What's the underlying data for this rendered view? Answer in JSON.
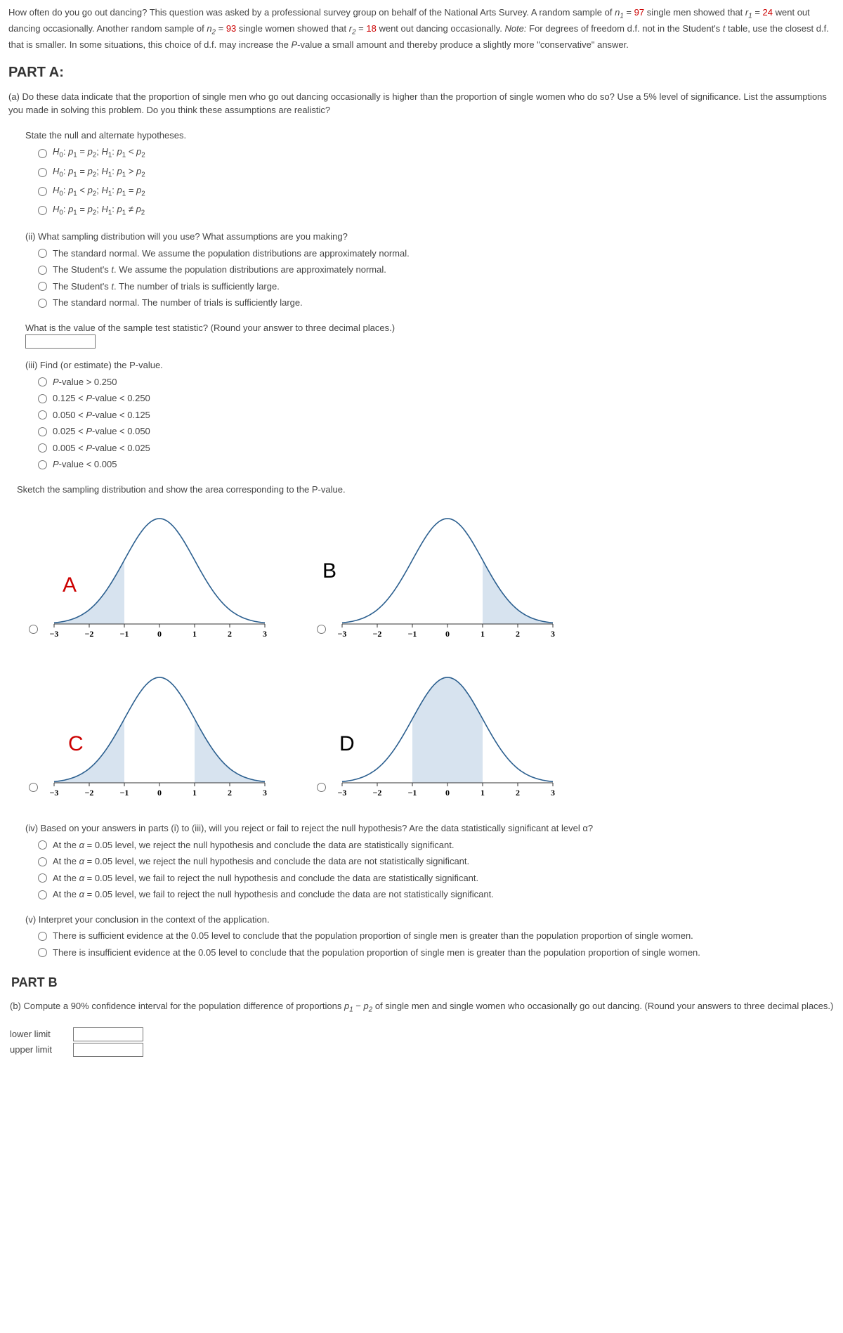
{
  "intro": {
    "pre": "How often do you go out dancing? This question was asked by a professional survey group on behalf of the National Arts Survey. A random sample of ",
    "n1_sym": "n",
    "n1_sub": "1",
    "eq": " = ",
    "n1_val": "97",
    "mid1": " single men showed that ",
    "r1_sym": "r",
    "r1_sub": "1",
    "r1_val": "24",
    "mid2": " went out dancing occasionally. Another random sample of ",
    "n2_sym": "n",
    "n2_sub": "2",
    "n2_val": "93",
    "mid3": " single women showed that ",
    "r2_sym": "r",
    "r2_sub": "2",
    "r2_val": "18",
    "mid4": " went out dancing occasionally. ",
    "note_label": "Note:",
    "note_text": " For degrees of freedom d.f. not in the Student's ",
    "note_t": "t",
    "note_text2": " table, use the closest d.f. that is smaller. In some situations, this choice of d.f. may increase the ",
    "note_P": "P",
    "note_text3": "-value a small amount and thereby produce a slightly more \"conservative\" answer."
  },
  "partA": {
    "title": "PART A:",
    "q": "(a) Do these data indicate that the proportion of single men who go out dancing occasionally is higher than the proportion of single women who do so? Use a 5% level of significance. List the assumptions you made in solving this problem. Do you think these assumptions are realistic?"
  },
  "hyp": {
    "title": "State the null and alternate hypotheses.",
    "opts": [
      {
        "h0": "H",
        "h0s": "0",
        "h1": "H",
        "h1s": "1",
        "rel0": "=",
        "rel1": "<"
      },
      {
        "h0": "H",
        "h0s": "0",
        "h1": "H",
        "h1s": "1",
        "rel0": "=",
        "rel1": ">"
      },
      {
        "h0": "H",
        "h0s": "0",
        "h1": "H",
        "h1s": "1",
        "rel0": "<",
        "rel1": "="
      },
      {
        "h0": "H",
        "h0s": "0",
        "h1": "H",
        "h1s": "1",
        "rel0": "=",
        "rel1": "≠"
      }
    ]
  },
  "dist": {
    "title": "(ii) What sampling distribution will you use? What assumptions are you making?",
    "opts": [
      "The standard normal. We assume the population distributions are approximately normal.",
      "The Student's t. We assume the population distributions are approximately normal.",
      "The Student's t. The number of trials is sufficiently large.",
      "The standard normal. The number of trials is sufficiently large."
    ]
  },
  "teststat": {
    "q": "What is the value of the sample test statistic? (Round your answer to three decimal places.)"
  },
  "pvalue": {
    "title": "(iii) Find (or estimate) the P-value.",
    "opts": [
      "P-value > 0.250",
      "0.125 < P-value < 0.250",
      "0.050 < P-value < 0.125",
      "0.025 < P-value < 0.050",
      "0.005 < P-value < 0.025",
      "P-value < 0.005"
    ]
  },
  "sketch": {
    "title": "Sketch the sampling distribution and show the area corresponding to the P-value.",
    "xmin": -3,
    "xmax": 3,
    "ticks": [
      -3,
      -2,
      -1,
      0,
      1,
      2,
      3
    ],
    "curve_color": "#2b5f8f",
    "fill_color": "#d7e3ef",
    "axis_color": "#333333",
    "tick_fontsize": 12,
    "panels": [
      {
        "id": "A",
        "label": "A",
        "label_color": "#c00",
        "shade": [
          [
            -3,
            -1
          ]
        ]
      },
      {
        "id": "B",
        "label": "B",
        "label_color": "#000",
        "shade": [
          [
            1,
            3
          ]
        ]
      },
      {
        "id": "C",
        "label": "C",
        "label_color": "#c00",
        "shade": [
          [
            -3,
            -1
          ],
          [
            1,
            3
          ]
        ]
      },
      {
        "id": "D",
        "label": "D",
        "label_color": "#000",
        "shade": [
          [
            -1,
            1
          ]
        ]
      }
    ]
  },
  "conclude": {
    "title": "(iv) Based on your answers in parts (i) to (iii), will you reject or fail to reject the null hypothesis? Are the data statistically significant at level α?",
    "opts": [
      "At the α = 0.05 level, we reject the null hypothesis and conclude the data are statistically significant.",
      "At the α = 0.05 level, we reject the null hypothesis and conclude the data are not statistically significant.",
      "At the α = 0.05 level, we fail to reject the null hypothesis and conclude the data are statistically significant.",
      "At the α = 0.05 level, we fail to reject the null hypothesis and conclude the data are not statistically significant."
    ]
  },
  "interpret": {
    "title": "(v) Interpret your conclusion in the context of the application.",
    "opts": [
      "There is sufficient evidence at the 0.05 level to conclude that the population proportion of single men is greater than the population proportion of single women.",
      "There is insufficient evidence at the 0.05 level to conclude that the population proportion of single men is greater than the population proportion of single women."
    ]
  },
  "partB": {
    "title": "PART B",
    "q_pre": "(b) Compute a 90% confidence interval for the population difference of proportions ",
    "sym": "p",
    "s1": "1",
    "minus": " − ",
    "s2": "2",
    "q_post": " of single men and single women who occasionally go out dancing. (Round your answers to three decimal places.)",
    "lower": "lower limit",
    "upper": "upper limit"
  }
}
